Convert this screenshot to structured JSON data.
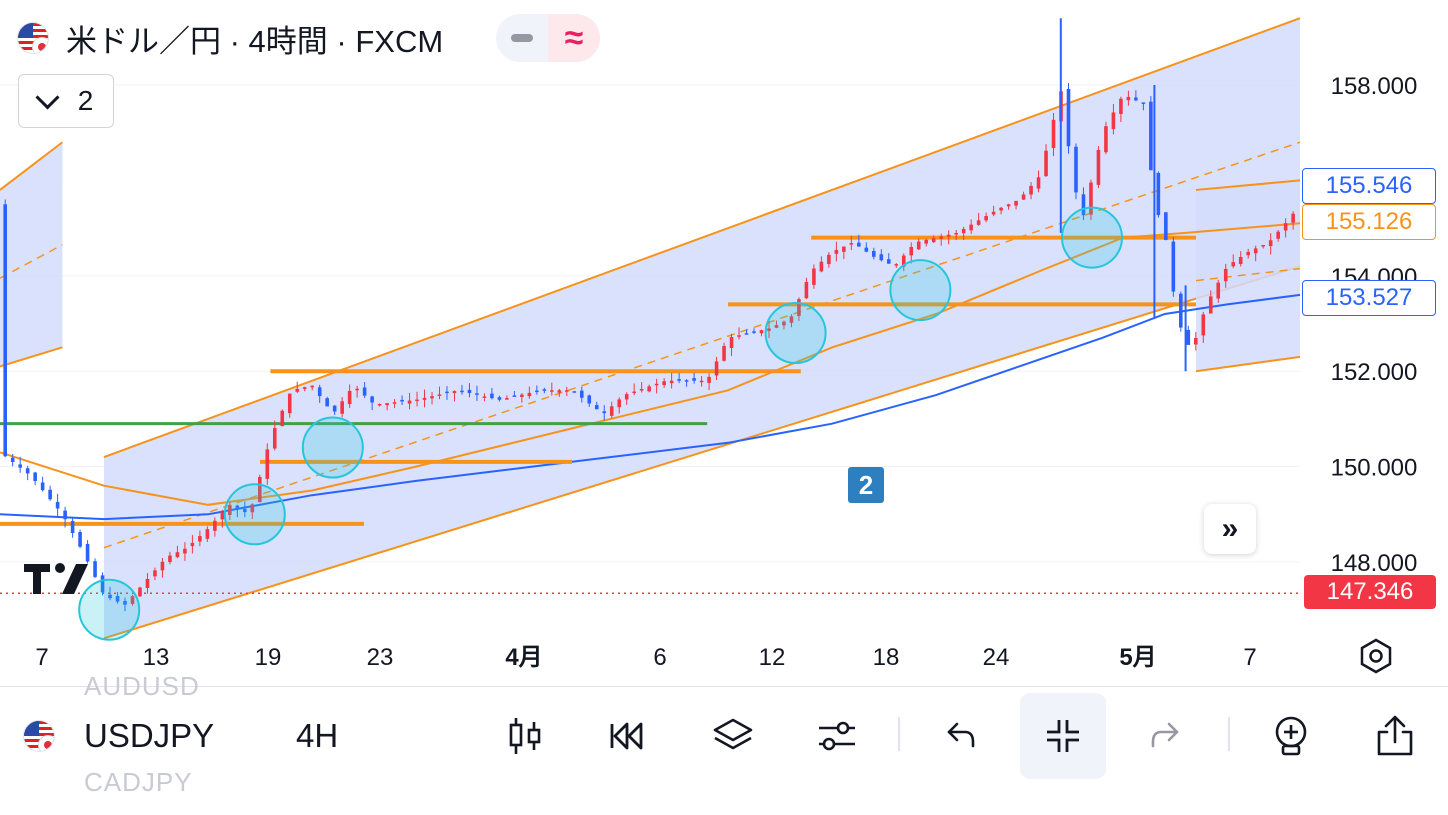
{
  "header": {
    "title": "米ドル／円 · 4時間 · FXCM",
    "flag_icon": "usd-jpy-flag-icon",
    "pill_left_icon": "minus-icon",
    "pill_right_icon": "approx-icon",
    "pill_right_glyph": "≈"
  },
  "indicator_toggle": {
    "count": "2",
    "icon": "chevron-down-icon"
  },
  "price_axis": {
    "labels": [
      "158.000",
      "154.000",
      "152.000",
      "150.000",
      "148.000"
    ],
    "values": [
      158,
      154,
      152,
      150,
      148
    ]
  },
  "price_boxes": {
    "blue_ma": {
      "value": "155.546",
      "color": "#2962ff"
    },
    "orange_ma": {
      "value": "155.126",
      "color": "#f7931a"
    },
    "blue_line": {
      "value": "153.527",
      "color": "#2962ff"
    },
    "current": {
      "value": "147.346",
      "color": "#f23645"
    }
  },
  "time_axis": {
    "labels": [
      "7",
      "13",
      "19",
      "23",
      "4月",
      "6",
      "12",
      "18",
      "24",
      "5月",
      "7"
    ],
    "bold": [
      false,
      false,
      false,
      false,
      true,
      false,
      false,
      false,
      false,
      true,
      false
    ]
  },
  "drawing_label": "2",
  "scroll_forward_icon": "double-chevron-right-icon",
  "settings_icon": "settings-hex-icon",
  "logo": "tradingview-logo",
  "toolbar": {
    "symbol": "USDJPY",
    "timeframe": "4H",
    "ghost_above": "AUDUSD",
    "ghost_below": "CADJPY",
    "buttons": [
      "candles-icon",
      "replay-icon",
      "layers-icon",
      "settings-sliders-icon",
      "undo-icon",
      "fullscreen-exit-icon",
      "redo-icon",
      "add-alert-icon",
      "share-icon"
    ]
  },
  "colors": {
    "channel": "#f7931a",
    "channel_fill": "#d3dcfb",
    "up_candle": "#f23645",
    "down_candle": "#2962ff",
    "support_green": "#43a047",
    "circle": "#26c6da"
  },
  "chart_data": {
    "type": "candlestick",
    "symbol": "USDJPY",
    "interval": "4H",
    "ylim": [
      146.8,
      159.5
    ],
    "y_ticks": [
      148,
      150,
      152,
      154,
      158
    ],
    "current_price": 147.346,
    "close_path": [
      [
        0,
        150.3
      ],
      [
        3,
        149.8
      ],
      [
        6,
        149.0
      ],
      [
        8,
        148.2
      ],
      [
        10,
        147.3
      ],
      [
        12,
        147.1
      ],
      [
        14,
        147.6
      ],
      [
        16,
        148.1
      ],
      [
        18,
        148.3
      ],
      [
        20,
        148.7
      ],
      [
        22,
        149.2
      ],
      [
        24,
        149.0
      ],
      [
        26,
        150.6
      ],
      [
        28,
        151.6
      ],
      [
        30,
        151.7
      ],
      [
        32,
        151.1
      ],
      [
        34,
        151.7
      ],
      [
        36,
        151.3
      ],
      [
        40,
        151.4
      ],
      [
        44,
        151.6
      ],
      [
        48,
        151.4
      ],
      [
        52,
        151.6
      ],
      [
        55,
        151.6
      ],
      [
        58,
        151.1
      ],
      [
        60,
        151.5
      ],
      [
        64,
        151.8
      ],
      [
        68,
        151.8
      ],
      [
        70,
        152.7
      ],
      [
        74,
        152.9
      ],
      [
        76,
        153.1
      ],
      [
        78,
        154.1
      ],
      [
        80,
        154.5
      ],
      [
        82,
        154.7
      ],
      [
        84,
        154.4
      ],
      [
        86,
        154.2
      ],
      [
        88,
        154.7
      ],
      [
        92,
        154.9
      ],
      [
        96,
        155.4
      ],
      [
        98,
        155.6
      ],
      [
        100,
        156.1
      ],
      [
        102,
        157.9
      ],
      [
        103,
        156.3
      ],
      [
        104,
        155.1
      ],
      [
        106,
        157.0
      ],
      [
        108,
        157.8
      ],
      [
        110,
        157.6
      ],
      [
        111,
        155.5
      ],
      [
        112,
        154.9
      ],
      [
        113,
        153.4
      ],
      [
        114,
        152.5
      ],
      [
        115,
        152.7
      ],
      [
        116,
        153.4
      ],
      [
        118,
        154.2
      ],
      [
        120,
        154.5
      ],
      [
        122,
        154.7
      ],
      [
        124,
        155.2
      ],
      [
        125,
        155.5
      ]
    ],
    "wicks": [
      {
        "t": 102,
        "high": 159.4,
        "low": 154.9
      },
      {
        "t": 111,
        "high": 158.0,
        "low": 153.1
      },
      {
        "t": 114,
        "high": 153.8,
        "low": 152.0
      }
    ],
    "series": [
      {
        "name": "",
        "color": "#2962ff",
        "points": [
          [
            0,
            149.0
          ],
          [
            10,
            148.9
          ],
          [
            20,
            149.0
          ],
          [
            30,
            149.4
          ],
          [
            40,
            149.7
          ],
          [
            55,
            150.1
          ],
          [
            70,
            150.5
          ],
          [
            80,
            150.9
          ],
          [
            90,
            151.5
          ],
          [
            98,
            152.1
          ],
          [
            106,
            152.7
          ],
          [
            112,
            153.2
          ],
          [
            118,
            153.4
          ],
          [
            125,
            153.6
          ]
        ]
      },
      {
        "name": "",
        "color": "#f7931a",
        "points": [
          [
            0,
            150.3
          ],
          [
            10,
            149.6
          ],
          [
            20,
            149.2
          ],
          [
            30,
            149.5
          ],
          [
            40,
            150.0
          ],
          [
            55,
            150.8
          ],
          [
            70,
            151.6
          ],
          [
            80,
            152.5
          ],
          [
            90,
            153.2
          ],
          [
            100,
            154.1
          ],
          [
            108,
            154.8
          ],
          [
            114,
            154.9
          ],
          [
            125,
            155.1
          ]
        ]
      }
    ],
    "hlines": [
      {
        "y": 152.0,
        "x": [
          26,
          77
        ],
        "color": "#f7931a"
      },
      {
        "y": 153.4,
        "x": [
          70,
          115
        ],
        "color": "#f7931a"
      },
      {
        "y": 154.8,
        "x": [
          78,
          115
        ],
        "color": "#f7931a"
      },
      {
        "y": 148.8,
        "x": [
          0,
          35
        ],
        "color": "#f7931a"
      },
      {
        "y": 150.1,
        "x": [
          25,
          55
        ],
        "color": "#f7931a"
      },
      {
        "y": 150.9,
        "x": [
          0,
          68
        ],
        "color": "#43a047"
      }
    ],
    "channels": [
      {
        "x": [
          10,
          125
        ],
        "upper": [
          150.2,
          159.4
        ],
        "lower": [
          146.4,
          154.2
        ]
      },
      {
        "x": [
          0,
          6
        ],
        "upper": [
          155.8,
          156.8
        ],
        "lower": [
          152.1,
          152.5
        ]
      },
      {
        "x": [
          115,
          125
        ],
        "upper": [
          155.8,
          156.0
        ],
        "lower": [
          152.0,
          152.3
        ]
      }
    ],
    "circles": [
      {
        "t": 10.5,
        "y": 147.0
      },
      {
        "t": 24.5,
        "y": 149.0
      },
      {
        "t": 32,
        "y": 150.4
      },
      {
        "t": 76.5,
        "y": 152.8
      },
      {
        "t": 88.5,
        "y": 153.7
      },
      {
        "t": 105,
        "y": 154.8
      }
    ]
  }
}
